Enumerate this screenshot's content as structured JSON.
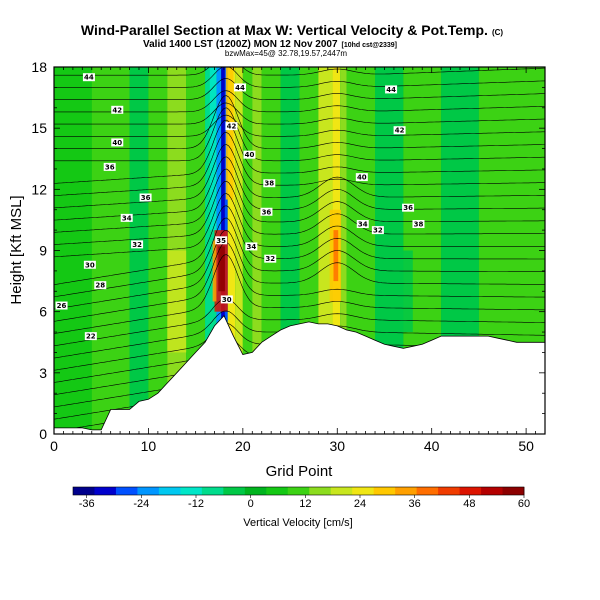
{
  "chart_data": {
    "type": "heatmap",
    "title": "Wind-Parallel Section at Max W: Vertical Velocity & Pot.Temp.",
    "title_mark": "(C)",
    "subtitle_main": "Valid 1400 LST (1200Z) MON 12 Nov 2007",
    "subtitle_note": "[10hd cst@2339]",
    "subtitle_sub": "bzwMax=45@ 32.78,19.57,2447m",
    "xlabel": "Grid Point",
    "ylabel": "Height [Kft MSL]",
    "xlim": [
      0,
      52
    ],
    "ylim": [
      0,
      18
    ],
    "x_ticks": [
      0,
      10,
      20,
      30,
      40,
      50
    ],
    "y_ticks": [
      0,
      3,
      6,
      9,
      12,
      15,
      18
    ],
    "colorbar": {
      "label": "Vertical Velocity [cm/s]",
      "ticks": [
        -36,
        -24,
        -12,
        0,
        12,
        24,
        36,
        48,
        60
      ],
      "min": -39,
      "max": 60,
      "colors": [
        "#00008c",
        "#0000cd",
        "#0050ff",
        "#0096ff",
        "#00c8f0",
        "#00e6c8",
        "#00dc8c",
        "#00c846",
        "#00b41e",
        "#14c814",
        "#3cd214",
        "#8cdc1e",
        "#c8e61e",
        "#f0e614",
        "#ffc800",
        "#ffa000",
        "#ff6e00",
        "#f03c00",
        "#dc1400",
        "#b40000",
        "#8c0000"
      ]
    },
    "terrain": [
      [
        0,
        0.3
      ],
      [
        1,
        0.3
      ],
      [
        2,
        0.3
      ],
      [
        3,
        0.3
      ],
      [
        4,
        0.2
      ],
      [
        5,
        0.2
      ],
      [
        6,
        1.2
      ],
      [
        7,
        1.2
      ],
      [
        8,
        1.2
      ],
      [
        9,
        1.6
      ],
      [
        10,
        1.7
      ],
      [
        11,
        2.0
      ],
      [
        12,
        2.5
      ],
      [
        13,
        3.0
      ],
      [
        14,
        3.5
      ],
      [
        15,
        4.0
      ],
      [
        16,
        4.5
      ],
      [
        17,
        5.3
      ],
      [
        18,
        5.8
      ],
      [
        19,
        4.8
      ],
      [
        20,
        3.9
      ],
      [
        21,
        4.0
      ],
      [
        22,
        4.5
      ],
      [
        23,
        4.8
      ],
      [
        24,
        5.1
      ],
      [
        25,
        5.3
      ],
      [
        26,
        5.4
      ],
      [
        27,
        5.5
      ],
      [
        28,
        5.4
      ],
      [
        29,
        5.4
      ],
      [
        30,
        5.3
      ],
      [
        31,
        5.1
      ],
      [
        32,
        5.0
      ],
      [
        33,
        4.8
      ],
      [
        34,
        4.6
      ],
      [
        35,
        4.4
      ],
      [
        36,
        4.3
      ],
      [
        37,
        4.2
      ],
      [
        38,
        4.3
      ],
      [
        39,
        4.4
      ],
      [
        40,
        4.6
      ],
      [
        41,
        4.8
      ],
      [
        42,
        4.8
      ],
      [
        43,
        4.8
      ],
      [
        44,
        4.8
      ],
      [
        45,
        4.8
      ],
      [
        46,
        4.8
      ],
      [
        47,
        4.7
      ],
      [
        48,
        4.6
      ],
      [
        49,
        4.5
      ],
      [
        50,
        4.5
      ],
      [
        51,
        4.5
      ],
      [
        52,
        4.5
      ]
    ],
    "contour_labels": [
      {
        "x": 3.7,
        "y": 17.5,
        "text": "44"
      },
      {
        "x": 6.7,
        "y": 15.9,
        "text": "42"
      },
      {
        "x": 6.7,
        "y": 14.3,
        "text": "40"
      },
      {
        "x": 5.9,
        "y": 13.1,
        "text": "36"
      },
      {
        "x": 9.7,
        "y": 11.6,
        "text": "36"
      },
      {
        "x": 7.7,
        "y": 10.6,
        "text": "34"
      },
      {
        "x": 8.8,
        "y": 9.3,
        "text": "32"
      },
      {
        "x": 3.8,
        "y": 8.3,
        "text": "30"
      },
      {
        "x": 4.9,
        "y": 7.3,
        "text": "28"
      },
      {
        "x": 0.8,
        "y": 6.3,
        "text": "26"
      },
      {
        "x": 3.9,
        "y": 4.8,
        "text": "22"
      },
      {
        "x": 19.7,
        "y": 17.0,
        "text": "44"
      },
      {
        "x": 18.8,
        "y": 15.1,
        "text": "42"
      },
      {
        "x": 20.7,
        "y": 13.7,
        "text": "40"
      },
      {
        "x": 22.8,
        "y": 12.3,
        "text": "38"
      },
      {
        "x": 22.5,
        "y": 10.9,
        "text": "36"
      },
      {
        "x": 17.7,
        "y": 9.5,
        "text": "35"
      },
      {
        "x": 20.9,
        "y": 9.2,
        "text": "34"
      },
      {
        "x": 22.9,
        "y": 8.6,
        "text": "32"
      },
      {
        "x": 18.3,
        "y": 6.6,
        "text": "30"
      },
      {
        "x": 35.7,
        "y": 16.9,
        "text": "44"
      },
      {
        "x": 36.6,
        "y": 14.9,
        "text": "42"
      },
      {
        "x": 32.6,
        "y": 12.6,
        "text": "40"
      },
      {
        "x": 37.5,
        "y": 11.1,
        "text": "36"
      },
      {
        "x": 32.7,
        "y": 10.3,
        "text": "34"
      },
      {
        "x": 34.3,
        "y": 10.0,
        "text": "32"
      },
      {
        "x": 38.6,
        "y": 10.3,
        "text": "38"
      }
    ]
  }
}
